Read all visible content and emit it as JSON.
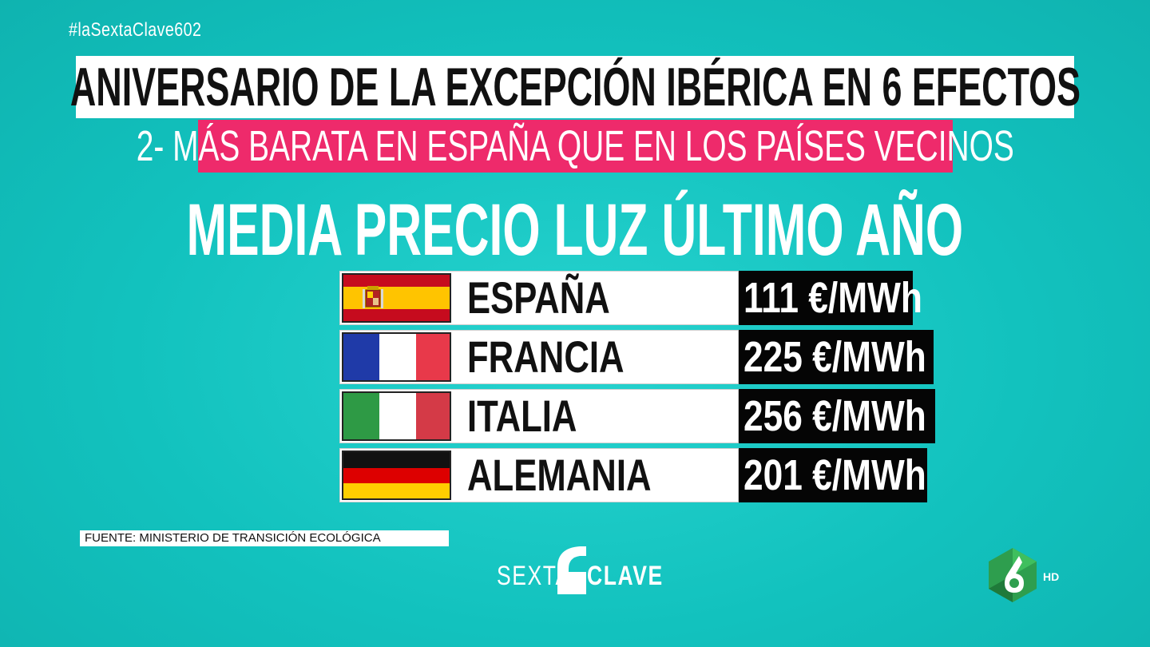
{
  "hashtag": "#laSextaClave602",
  "title": "ANIVERSARIO DE LA EXCEPCIÓN IBÉRICA EN 6 EFECTOS",
  "subtitle": "2- MÁS BARATA EN ESPAÑA QUE EN LOS PAÍSES VECINOS",
  "heading": "MEDIA PRECIO LUZ ÚLTIMO AÑO",
  "rows": [
    {
      "country": "ESPAÑA",
      "price": "111 €/MWh",
      "flag": "spain-flag"
    },
    {
      "country": "FRANCIA",
      "price": "225 €/MWh",
      "flag": "france-flag"
    },
    {
      "country": "ITALIA",
      "price": "256 €/MWh",
      "flag": "italy-flag"
    },
    {
      "country": "ALEMANIA",
      "price": "201 €/MWh",
      "flag": "germany-flag"
    }
  ],
  "source": "FUENTE: MINISTERIO DE TRANSICIÓN ECOLÓGICA",
  "brand": {
    "left": "SEXTA",
    "right": "CLAVE"
  },
  "channel": {
    "hd": "HD"
  },
  "colors": {
    "background": "#12c2be",
    "subtitle_bar": "#ee2a6b",
    "price_box": "#050505",
    "channel_logo": "#2e9e4e"
  }
}
